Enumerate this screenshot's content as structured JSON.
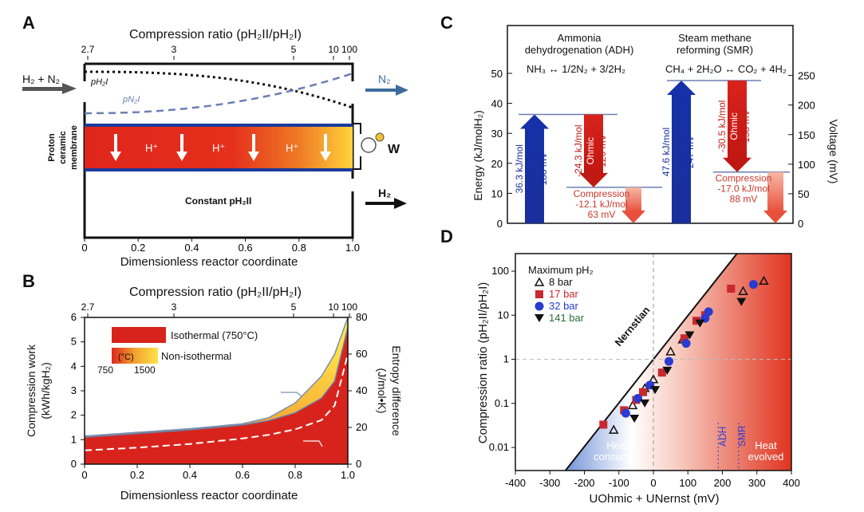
{
  "panels": {
    "A": "A",
    "B": "B",
    "C": "C",
    "D": "D"
  },
  "colors": {
    "red": "#e0261c",
    "blue": "#1a2f9c",
    "navy": "#1c2a78",
    "orange": "#f2a230",
    "yellow": "#ffd43b",
    "dashblue": "#6b7fb3",
    "salmon": "#e8503c",
    "green": "#2a6e3a"
  },
  "chart_data": [
    {
      "panel": "A",
      "type": "diagram",
      "top_axis_label_pre": "Compression ratio (",
      "top_axis_label_expr": "p",
      "top_axis_label_sub": "H₂",
      "top_axis_label_mid": "II/p",
      "top_axis_label_sup": "I",
      "top_axis_label_post": ")",
      "top_axis_label": "Compression ratio (pH₂II/pH₂I)",
      "top_ticks": [
        "2.7",
        "3",
        "5",
        "10",
        "100"
      ],
      "xlabel": "Dimensionless reactor coordinate",
      "x_ticks": [
        "0",
        "0.2",
        "0.4",
        "0.6",
        "0.8",
        "1.0"
      ],
      "xlim": [
        0,
        1
      ],
      "inlet_label": "H₂ + N₂",
      "outlet_label": "N₂",
      "product_label": "H₂",
      "p1_label": "pH₂I",
      "pn_label": "pN₂I",
      "membrane_label": [
        "Proton",
        "ceramic",
        "membrane"
      ],
      "proton_labels": [
        "H⁺",
        "H⁺",
        "H⁺"
      ],
      "work_label": "W",
      "constant_label": "Constant pH₂II",
      "grid": false
    },
    {
      "panel": "B",
      "type": "area",
      "top_axis_label": "Compression ratio (pH₂II/pH₂I)",
      "top_ticks": [
        "2.7",
        "3",
        "5",
        "10",
        "100"
      ],
      "xlabel": "Dimensionless reactor coordinate",
      "ylabel_left": [
        "Compression work",
        "(kWh/kgH₂)"
      ],
      "ylabel_right": [
        "Entropy difference",
        "(J/mol•K)"
      ],
      "x_ticks": [
        "0",
        "0.2",
        "0.4",
        "0.6",
        "0.8",
        "1.0"
      ],
      "y_ticks_left": [
        "0",
        "1",
        "2",
        "3",
        "4",
        "5",
        "6"
      ],
      "y_ticks_right": [
        "0",
        "20",
        "40",
        "60",
        "80"
      ],
      "xlim": [
        0,
        1
      ],
      "ylim": [
        0,
        6
      ],
      "ylim_right": [
        0,
        80
      ],
      "legend": [
        {
          "name": "Isothermal (750°C)",
          "color": "#e0261c"
        },
        {
          "name": "Non-isothermal",
          "color": "#f2a230"
        }
      ],
      "temp_unit": "(°C)",
      "temp_range": [
        "750",
        "1500"
      ],
      "legend_placement": "top-left",
      "series": [
        {
          "name": "isothermal work",
          "x": [
            0,
            0.2,
            0.4,
            0.6,
            0.7,
            0.8,
            0.9,
            0.95,
            1.0
          ],
          "values": [
            1.1,
            1.25,
            1.4,
            1.6,
            1.78,
            2.1,
            2.7,
            3.4,
            5.6
          ]
        },
        {
          "name": "non-isothermal work",
          "x": [
            0,
            0.2,
            0.4,
            0.6,
            0.7,
            0.8,
            0.9,
            0.95,
            1.0
          ],
          "values": [
            1.15,
            1.3,
            1.45,
            1.65,
            1.9,
            2.5,
            3.6,
            4.5,
            6.0
          ]
        },
        {
          "name": "entropy difference",
          "x": [
            0,
            0.2,
            0.4,
            0.6,
            0.7,
            0.8,
            0.9,
            0.95,
            1.0
          ],
          "values": [
            7.5,
            9,
            11,
            14,
            16,
            19,
            24,
            32,
            60
          ]
        }
      ],
      "grid": false
    },
    {
      "panel": "C",
      "type": "bar",
      "ylabel_left": "Energy (kJ/molH₂)",
      "ylabel_right": "Voltage (mV)",
      "y_ticks_left": [
        "0",
        "10",
        "20",
        "30",
        "40",
        "50"
      ],
      "y_ticks_right": [
        "0",
        "50",
        "100",
        "150",
        "200",
        "250"
      ],
      "ylim": [
        0,
        50
      ],
      "ylim_right": [
        0,
        259
      ],
      "groups": [
        {
          "title": [
            "Ammonia",
            "dehydrogenation (ADH)"
          ],
          "reaction": "NH₃ ↔ 1/2N₂ + 3/2H₂",
          "reaction_energy": 36.3,
          "reaction_label": [
            "36.3 kJ/mol",
            "Reaction",
            "188 mV"
          ],
          "ohmic_energy": -24.3,
          "ohmic_label": [
            "-24.3 kJ/mol",
            "Ohmic",
            "126 mV"
          ],
          "compression_energy": -12.1,
          "compression_label": [
            "Compression",
            "-12.1 kJ/mol",
            "63 mV"
          ]
        },
        {
          "title": [
            "Steam methane",
            "reforming (SMR)"
          ],
          "reaction": "CH₄ + 2H₂O ↔ CO₂ + 4H₂",
          "reaction_energy": 47.6,
          "reaction_label": [
            "47.6 kJ/mol",
            "Reaction",
            "247 mV"
          ],
          "ohmic_energy": -30.5,
          "ohmic_label": [
            "-30.5 kJ/mol",
            "Ohmic",
            "158 mV"
          ],
          "compression_energy": -17.0,
          "compression_label": [
            "Compression",
            "-17.0 kJ/mol",
            "88 mV"
          ]
        }
      ],
      "grid": false
    },
    {
      "panel": "D",
      "type": "scatter",
      "xlabel": "UOhmic + UNernst (mV)",
      "ylabel": "Compression ratio (pH₂II/pH₂I)",
      "x_ticks": [
        "-400",
        "-300",
        "-200",
        "-100",
        "0",
        "100",
        "200",
        "300",
        "400"
      ],
      "y_ticks": [
        "0.01",
        "0.1",
        "1",
        "10",
        "100"
      ],
      "xlim": [
        -400,
        400
      ],
      "ylim": [
        0.003,
        250
      ],
      "y_scale": "log",
      "legend_title": "Maximum pH₂",
      "legend_placement": "top-left",
      "nernstian_label": "Nernstian",
      "adh_label": "ADH",
      "adh_x": 188,
      "smr_label": "SMR",
      "smr_x": 247,
      "heat_consumed": [
        "Heat",
        "consumed"
      ],
      "heat_evolved": [
        "Heat",
        "evolved"
      ],
      "series": [
        {
          "name": "8 bar",
          "marker": "triangle-open",
          "color": "#111111",
          "label_color": "#111111",
          "x": [
            -115,
            -60,
            -25,
            0,
            50,
            85,
            320,
            260
          ],
          "y": [
            0.025,
            0.09,
            0.22,
            0.35,
            1.5,
            2.8,
            60,
            35
          ]
        },
        {
          "name": "17 bar",
          "marker": "square",
          "color": "#c8282e",
          "label_color": "#c8282e",
          "x": [
            -145,
            -85,
            -50,
            -30,
            25,
            90,
            125,
            150,
            225
          ],
          "y": [
            0.033,
            0.07,
            0.12,
            0.18,
            0.5,
            3.0,
            7.5,
            10,
            40
          ]
        },
        {
          "name": "32 bar",
          "marker": "circle",
          "color": "#2a3bd0",
          "label_color": "#2a3bd0",
          "x": [
            -80,
            -45,
            -10,
            45,
            95,
            150,
            160,
            290
          ],
          "y": [
            0.06,
            0.13,
            0.26,
            0.9,
            2.3,
            8.5,
            12,
            50
          ]
        },
        {
          "name": "141 bar",
          "marker": "triangle-down",
          "color": "#111111",
          "label_color": "#2a6e3a",
          "x": [
            -55,
            -25,
            5,
            40,
            105,
            135,
            255
          ],
          "y": [
            0.045,
            0.1,
            0.2,
            0.55,
            3.5,
            6.5,
            20
          ]
        }
      ],
      "grid": false
    }
  ]
}
